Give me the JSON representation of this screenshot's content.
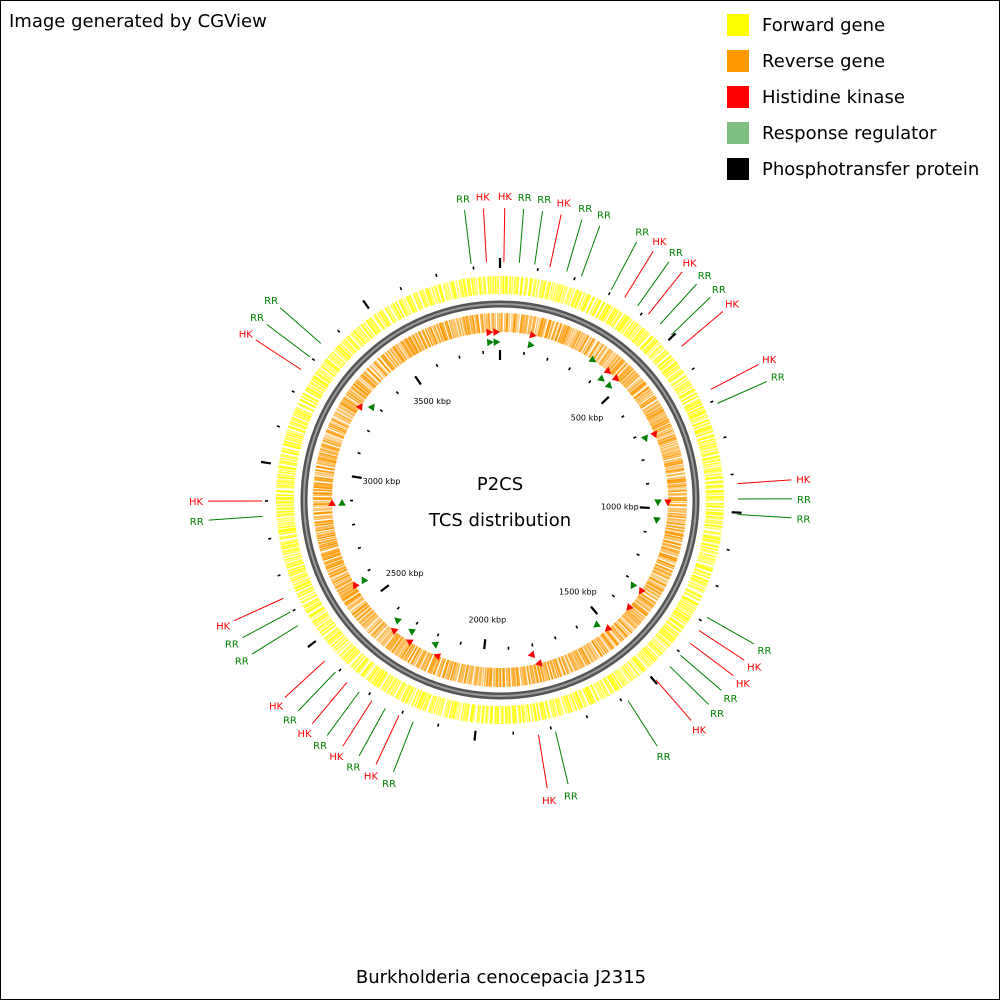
{
  "credit": "Image generated by CGView",
  "legend": [
    {
      "label": "Forward gene",
      "color": "#ffff00"
    },
    {
      "label": "Reverse gene",
      "color": "#ff9900"
    },
    {
      "label": "Histidine kinase",
      "color": "#ff0000"
    },
    {
      "label": "Response regulator",
      "color": "#7fbf7f"
    },
    {
      "label": "Phosphotransfer protein",
      "color": "#000000"
    }
  ],
  "center": {
    "title": "P2CS",
    "subtitle": "TCS distribution"
  },
  "organism": "Burkholderia cenocepacia J2315",
  "genome": {
    "length_kbp": 3870,
    "tick_labels": [
      "500 kbp",
      "1000 kbp",
      "1500 kbp",
      "2000 kbp",
      "2500 kbp",
      "3000 kbp",
      "3500 kbp"
    ]
  },
  "colors": {
    "forward": "#ffff00",
    "reverse": "#ff9900",
    "backbone": "#777777",
    "hk": "#ff0000",
    "rr": "#008000",
    "tick": "#000000"
  },
  "tcs_labels": [
    {
      "label": "RR",
      "type": "RR",
      "kbp": 3795
    },
    {
      "label": "HK",
      "type": "HK",
      "kbp": 3835
    },
    {
      "label": "HK",
      "type": "HK",
      "kbp": 10
    },
    {
      "label": "RR",
      "type": "RR",
      "kbp": 50
    },
    {
      "label": "RR",
      "type": "RR",
      "kbp": 90
    },
    {
      "label": "HK",
      "type": "HK",
      "kbp": 130
    },
    {
      "label": "RR",
      "type": "RR",
      "kbp": 175
    },
    {
      "label": "RR",
      "type": "RR",
      "kbp": 215
    },
    {
      "label": "RR",
      "type": "RR",
      "kbp": 300
    },
    {
      "label": "HK",
      "type": "HK",
      "kbp": 340
    },
    {
      "label": "RR",
      "type": "RR",
      "kbp": 380
    },
    {
      "label": "HK",
      "type": "HK",
      "kbp": 415
    },
    {
      "label": "RR",
      "type": "RR",
      "kbp": 455
    },
    {
      "label": "RR",
      "type": "RR",
      "kbp": 495
    },
    {
      "label": "HK",
      "type": "HK",
      "kbp": 535
    },
    {
      "label": "HK",
      "type": "HK",
      "kbp": 670
    },
    {
      "label": "RR",
      "type": "RR",
      "kbp": 710
    },
    {
      "label": "HK",
      "type": "HK",
      "kbp": 925
    },
    {
      "label": "RR",
      "type": "RR",
      "kbp": 965
    },
    {
      "label": "RR",
      "type": "RR",
      "kbp": 1005
    },
    {
      "label": "RR",
      "type": "RR",
      "kbp": 1285
    },
    {
      "label": "HK",
      "type": "HK",
      "kbp": 1325
    },
    {
      "label": "HK",
      "type": "HK",
      "kbp": 1365
    },
    {
      "label": "RR",
      "type": "RR",
      "kbp": 1405
    },
    {
      "label": "RR",
      "type": "RR",
      "kbp": 1445
    },
    {
      "label": "HK",
      "type": "HK",
      "kbp": 1495
    },
    {
      "label": "RR",
      "type": "RR",
      "kbp": 1585
    },
    {
      "label": "RR",
      "type": "RR",
      "kbp": 1790
    },
    {
      "label": "HK",
      "type": "HK",
      "kbp": 1835
    },
    {
      "label": "RR",
      "type": "RR",
      "kbp": 2165
    },
    {
      "label": "HK",
      "type": "HK",
      "kbp": 2205
    },
    {
      "label": "RR",
      "type": "RR",
      "kbp": 2245
    },
    {
      "label": "HK",
      "type": "HK",
      "kbp": 2285
    },
    {
      "label": "RR",
      "type": "RR",
      "kbp": 2325
    },
    {
      "label": "HK",
      "type": "HK",
      "kbp": 2365
    },
    {
      "label": "RR",
      "type": "RR",
      "kbp": 2405
    },
    {
      "label": "HK",
      "type": "HK",
      "kbp": 2445
    },
    {
      "label": "RR",
      "type": "RR",
      "kbp": 2560
    },
    {
      "label": "RR",
      "type": "RR",
      "kbp": 2600
    },
    {
      "label": "HK",
      "type": "HK",
      "kbp": 2640
    },
    {
      "label": "RR",
      "type": "RR",
      "kbp": 2860
    },
    {
      "label": "HK",
      "type": "HK",
      "kbp": 2900
    },
    {
      "label": "HK",
      "type": "HK",
      "kbp": 3260
    },
    {
      "label": "RR",
      "type": "RR",
      "kbp": 3300
    },
    {
      "label": "RR",
      "type": "RR",
      "kbp": 3345
    }
  ],
  "inner_markers": [
    {
      "type": "HK",
      "kbp": 3830,
      "strand": "forward"
    },
    {
      "type": "RR",
      "kbp": 3830,
      "strand": "reverse"
    },
    {
      "type": "HK",
      "kbp": 3855,
      "strand": "forward"
    },
    {
      "type": "RR",
      "kbp": 3855,
      "strand": "reverse"
    },
    {
      "type": "HK",
      "kbp": 120,
      "strand": "forward"
    },
    {
      "type": "RR",
      "kbp": 120,
      "strand": "reverse"
    },
    {
      "type": "RR",
      "kbp": 360,
      "strand": "forward"
    },
    {
      "type": "HK",
      "kbp": 430,
      "strand": "forward"
    },
    {
      "type": "RR",
      "kbp": 430,
      "strand": "reverse"
    },
    {
      "type": "HK",
      "kbp": 470,
      "strand": "forward"
    },
    {
      "type": "RR",
      "kbp": 470,
      "strand": "reverse"
    },
    {
      "type": "HK",
      "kbp": 720,
      "strand": "forward"
    },
    {
      "type": "RR",
      "kbp": 720,
      "strand": "reverse"
    },
    {
      "type": "HK",
      "kbp": 975,
      "strand": "forward"
    },
    {
      "type": "RR",
      "kbp": 975,
      "strand": "reverse"
    },
    {
      "type": "RR",
      "kbp": 1045,
      "strand": "reverse"
    },
    {
      "type": "HK",
      "kbp": 1320,
      "strand": "forward"
    },
    {
      "type": "RR",
      "kbp": 1320,
      "strand": "reverse"
    },
    {
      "type": "HK",
      "kbp": 1395,
      "strand": "forward"
    },
    {
      "type": "HK",
      "kbp": 1505,
      "strand": "forward"
    },
    {
      "type": "RR",
      "kbp": 1530,
      "strand": "reverse"
    },
    {
      "type": "HK",
      "kbp": 1790,
      "strand": "forward"
    },
    {
      "type": "HK",
      "kbp": 1810,
      "strand": "reverse"
    },
    {
      "type": "HK",
      "kbp": 2170,
      "strand": "forward"
    },
    {
      "type": "RR",
      "kbp": 2195,
      "strand": "reverse"
    },
    {
      "type": "HK",
      "kbp": 2285,
      "strand": "forward"
    },
    {
      "type": "RR",
      "kbp": 2300,
      "strand": "reverse"
    },
    {
      "type": "HK",
      "kbp": 2355,
      "strand": "forward"
    },
    {
      "type": "RR",
      "kbp": 2370,
      "strand": "reverse"
    },
    {
      "type": "HK",
      "kbp": 2575,
      "strand": "forward"
    },
    {
      "type": "RR",
      "kbp": 2575,
      "strand": "reverse"
    },
    {
      "type": "HK",
      "kbp": 2890,
      "strand": "forward"
    },
    {
      "type": "RR",
      "kbp": 2890,
      "strand": "reverse"
    },
    {
      "type": "HK",
      "kbp": 3265,
      "strand": "forward"
    },
    {
      "type": "RR",
      "kbp": 3290,
      "strand": "reverse"
    }
  ]
}
